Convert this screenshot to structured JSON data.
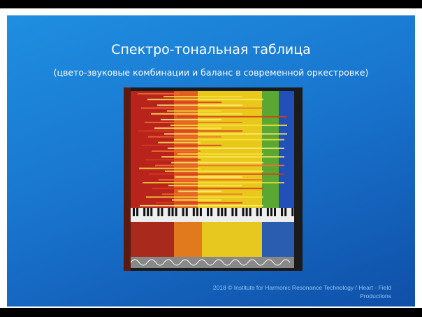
{
  "slide": {
    "title": "Спектро-тональная таблица",
    "subtitle": "(цвето-звуковые комбинации и баланс в современной оркестровке)",
    "footer": "2018 © Institute for Harmonic Resonance Technology / Heart - Field Productions"
  }
}
